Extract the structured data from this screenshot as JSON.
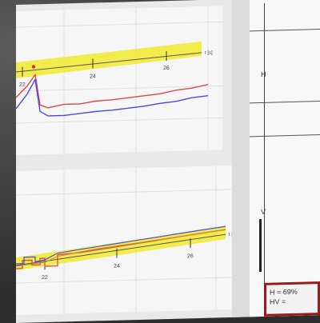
{
  "top_chart": {
    "x_ticks": [
      "22",
      "24",
      "26"
    ],
    "axis_label": "t [s]"
  },
  "bottom_chart": {
    "x_ticks": [
      "22",
      "24",
      "26"
    ],
    "axis_label": "t [s]"
  },
  "right_panel": {
    "upper_label": "H",
    "lower_label": "V"
  },
  "readout": {
    "line1": "H = 69%",
    "line2": "HV ="
  },
  "colors": {
    "highlight": "#f2ea3a",
    "red_trace": "#d84a4a",
    "blue_trace": "#4a4ae0",
    "readout_border": "#9b1b1b"
  }
}
